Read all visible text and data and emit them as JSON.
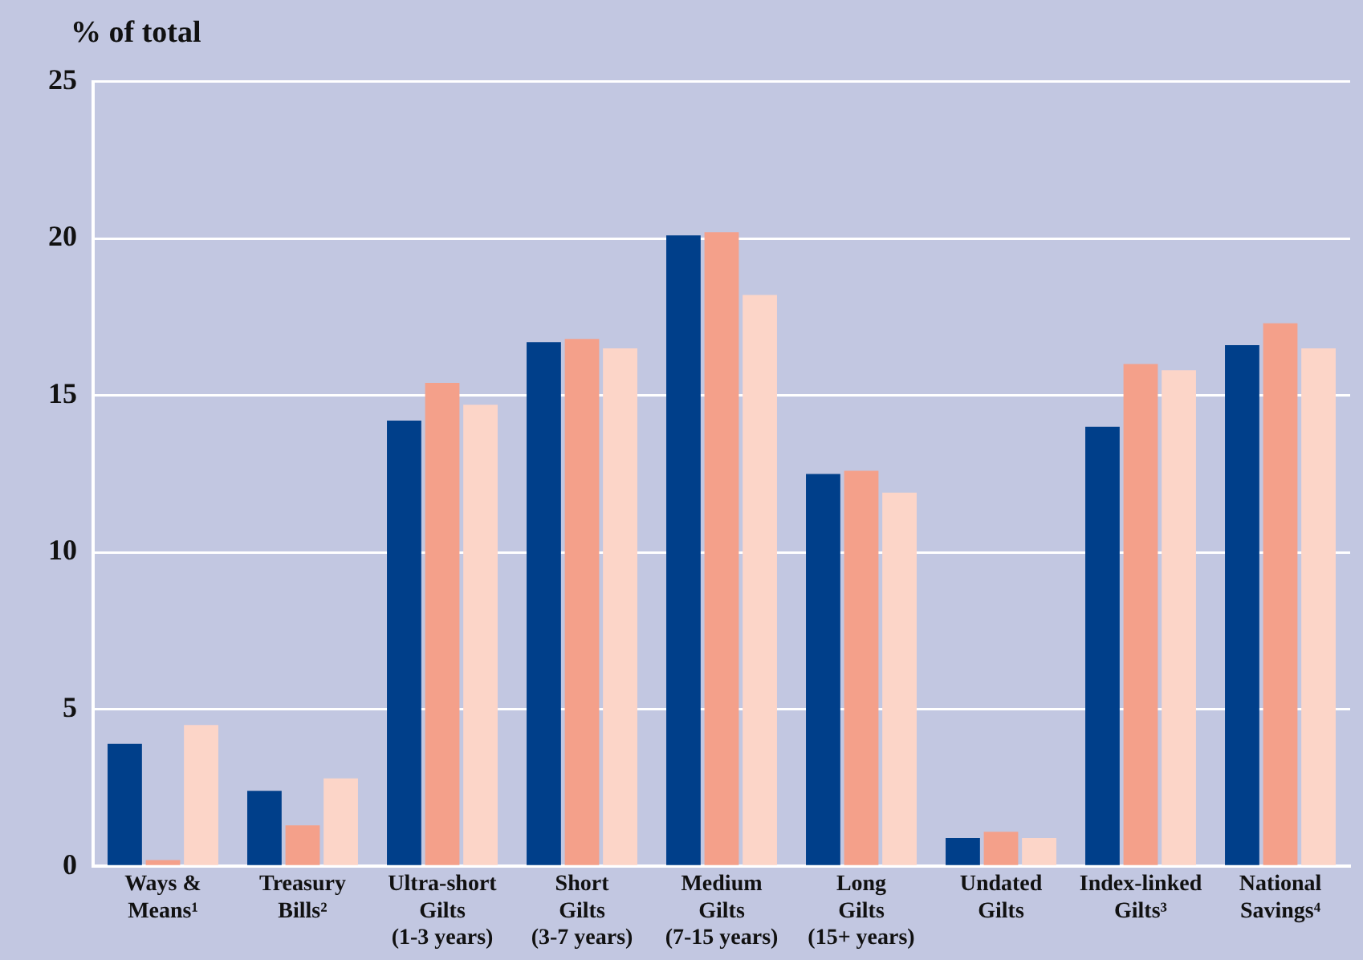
{
  "chart_data": {
    "type": "bar",
    "ylabel": "% of total",
    "categories": [
      "Ways &\nMeans¹",
      "Treasury\nBills²",
      "Ultra-short\nGilts\n(1-3 years)",
      "Short\nGilts\n(3-7 years)",
      "Medium\nGilts\n(7-15 years)",
      "Long\nGilts\n(15+ years)",
      "Undated\nGilts",
      "Index-linked\nGilts³",
      "National\nSavings⁴"
    ],
    "series": [
      {
        "color": "#003f8a",
        "values": [
          3.9,
          2.4,
          14.2,
          16.7,
          20.1,
          12.5,
          0.9,
          14.0,
          16.6
        ]
      },
      {
        "color": "#f4a08a",
        "values": [
          0.2,
          1.3,
          15.4,
          16.8,
          20.2,
          12.6,
          1.1,
          16.0,
          17.3
        ]
      },
      {
        "color": "#fcd5c8",
        "values": [
          4.5,
          2.8,
          14.7,
          16.5,
          18.2,
          11.9,
          0.9,
          15.8,
          16.5
        ]
      }
    ],
    "ylim": [
      0,
      25
    ],
    "yticks": [
      0,
      5,
      10,
      15,
      20,
      25
    ],
    "grid": "y",
    "legend": false
  }
}
